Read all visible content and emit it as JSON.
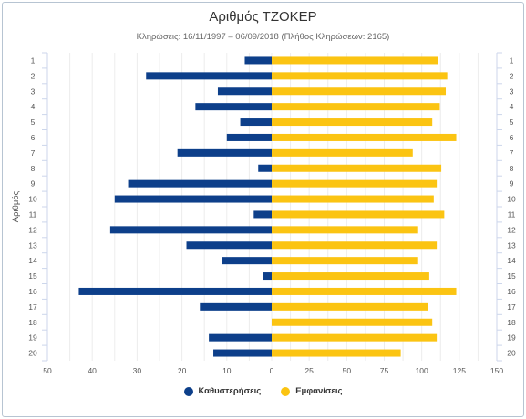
{
  "chart_data": {
    "type": "bar",
    "orientation": "horizontal-diverging",
    "title": "Αριθμός ΤΖΟΚΕΡ",
    "subtitle": "Κληρώσεις: 16/11/1997 – 06/09/2018 (Πλήθος Κληρώσεων: 2165)",
    "ylabel": "Αριθμός",
    "categories": [
      "1",
      "2",
      "3",
      "4",
      "5",
      "6",
      "7",
      "8",
      "9",
      "10",
      "11",
      "12",
      "13",
      "14",
      "15",
      "16",
      "17",
      "18",
      "19",
      "20"
    ],
    "series": [
      {
        "name": "Καθυστερήσεις",
        "color": "#0d3f8a",
        "axis": "left",
        "xlim": [
          50,
          0
        ],
        "ticks": [
          "50",
          "40",
          "30",
          "20",
          "10",
          "0"
        ],
        "values": [
          6,
          28,
          12,
          17,
          7,
          10,
          21,
          3,
          32,
          35,
          4,
          36,
          19,
          11,
          2,
          43,
          16,
          0,
          14,
          13
        ]
      },
      {
        "name": "Εμφανίσεις",
        "color": "#fbc412",
        "axis": "right",
        "xlim": [
          0,
          150
        ],
        "ticks": [
          "0",
          "25",
          "50",
          "75",
          "100",
          "125",
          "150"
        ],
        "values": [
          111,
          117,
          116,
          112,
          107,
          123,
          94,
          113,
          110,
          108,
          115,
          97,
          110,
          97,
          105,
          123,
          104,
          107,
          110,
          86
        ]
      }
    ],
    "grid": true,
    "legend": "bottom"
  }
}
